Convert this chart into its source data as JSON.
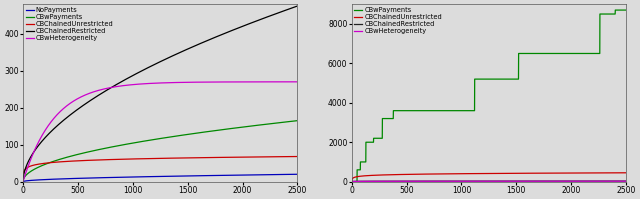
{
  "xlim": [
    0,
    2500
  ],
  "left_ylim": [
    0,
    480
  ],
  "right_ylim": [
    0,
    9000
  ],
  "left_yticks": [
    0,
    100,
    200,
    300,
    400
  ],
  "right_yticks": [
    0,
    2000,
    4000,
    6000,
    8000
  ],
  "xticks": [
    0,
    500,
    1000,
    1500,
    2000,
    2500
  ],
  "legend_left": [
    "NoPayments",
    "CBwPayments",
    "CBChainedUnrestricted",
    "CBChainedRestricted",
    "CBwHeterogeneity"
  ],
  "legend_right": [
    "CBwPayments",
    "CBChainedUnrestricted",
    "CBChainedRestricted",
    "CBwHeterogeneity"
  ],
  "colors_left": {
    "NoPayments": "#0000bb",
    "CBwPayments": "#008800",
    "CBChainedUnrestricted": "#cc0000",
    "CBChainedRestricted": "#000000",
    "CBwHeterogeneity": "#cc00cc"
  },
  "colors_right": {
    "CBwPayments": "#008800",
    "CBChainedUnrestricted": "#cc0000",
    "CBChainedRestricted": "#222222",
    "CBwHeterogeneity": "#cc00cc"
  },
  "bg_color": "#dcdcdc",
  "figsize": [
    6.4,
    1.99
  ],
  "dpi": 100,
  "lw": 0.9,
  "fontsize": 4.8
}
